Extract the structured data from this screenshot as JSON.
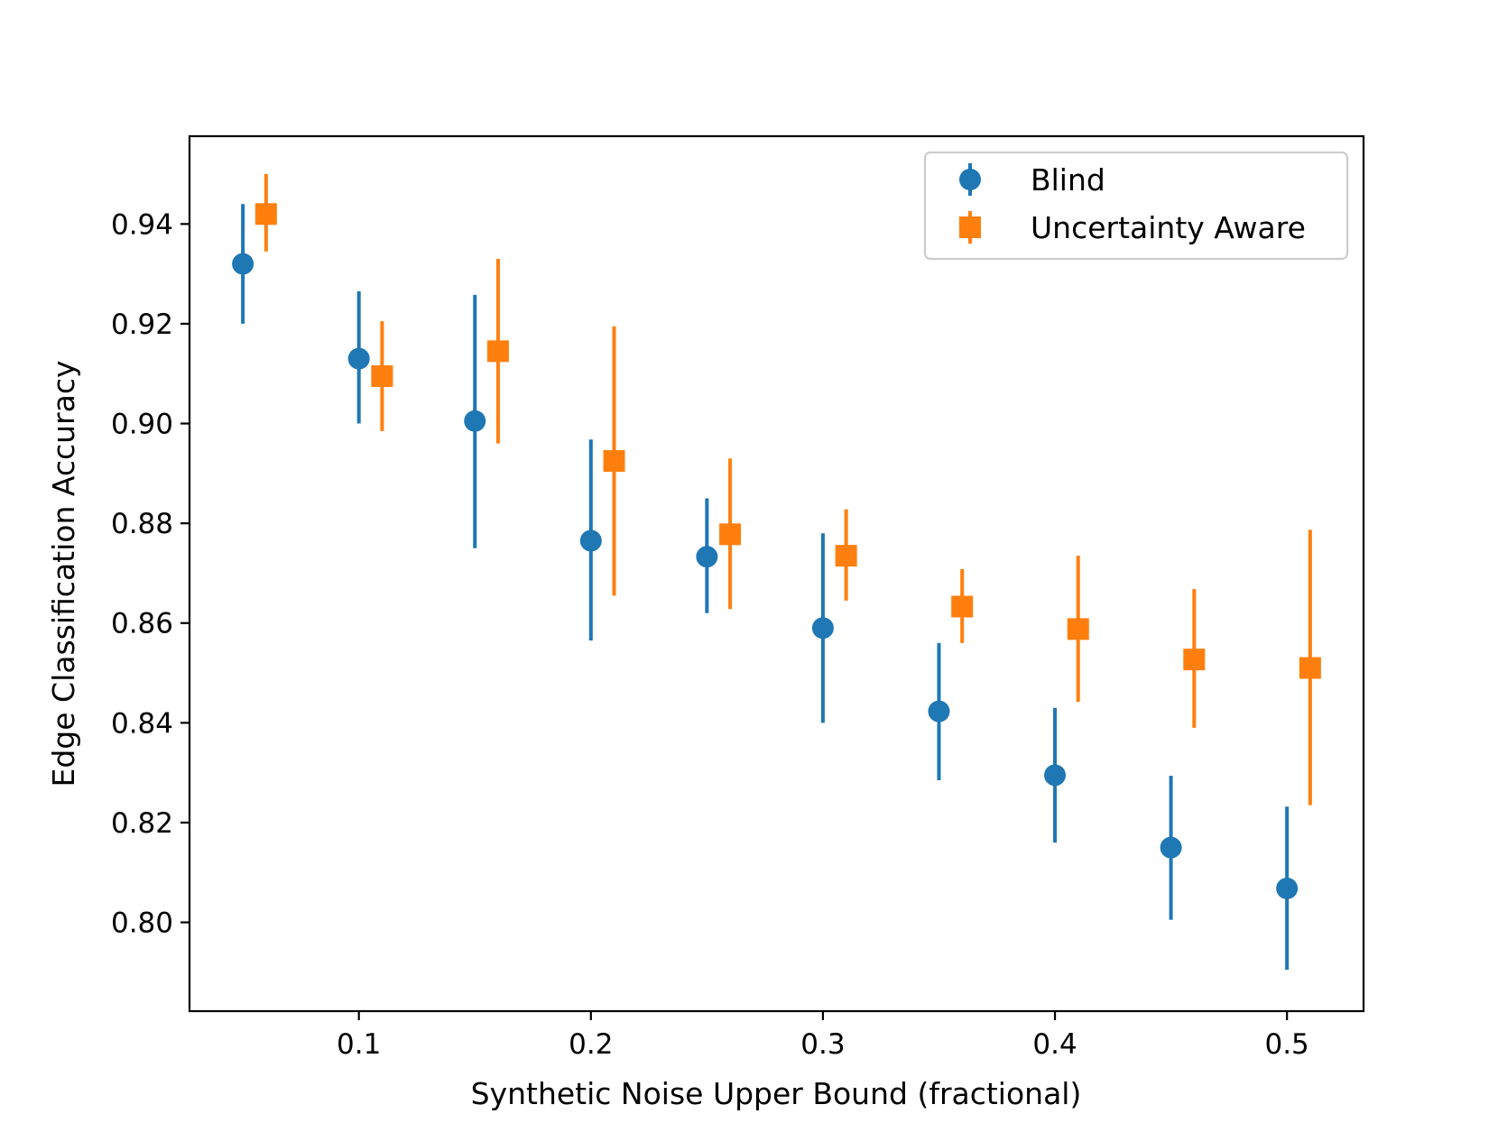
{
  "chart_data": {
    "type": "scatter",
    "title": "",
    "xlabel": "Synthetic Noise Upper Bound (fractional)",
    "ylabel": "Edge Classification Accuracy",
    "xlim": [
      0.027,
      0.533
    ],
    "ylim": [
      0.7822,
      0.9576
    ],
    "xticks": [
      0.1,
      0.2,
      0.3,
      0.4,
      0.5
    ],
    "xtick_labels": [
      "0.1",
      "0.2",
      "0.3",
      "0.4",
      "0.5"
    ],
    "yticks": [
      0.8,
      0.82,
      0.84,
      0.86,
      0.88,
      0.9,
      0.92,
      0.94
    ],
    "ytick_labels": [
      "0.80",
      "0.82",
      "0.84",
      "0.86",
      "0.88",
      "0.90",
      "0.92",
      "0.94"
    ],
    "legend_position": "top-right",
    "series": [
      {
        "name": "Blind",
        "marker": "circle",
        "color": "#1f77b4",
        "x": [
          0.05,
          0.1,
          0.15,
          0.2,
          0.25,
          0.3,
          0.35,
          0.4,
          0.45,
          0.5
        ],
        "y": [
          0.932,
          0.913,
          0.9005,
          0.8765,
          0.8733,
          0.859,
          0.8423,
          0.8295,
          0.815,
          0.8068
        ],
        "err_low": [
          0.92,
          0.9,
          0.875,
          0.8565,
          0.862,
          0.84,
          0.8285,
          0.816,
          0.8005,
          0.7905
        ],
        "err_high": [
          0.944,
          0.9265,
          0.9258,
          0.8968,
          0.885,
          0.878,
          0.856,
          0.843,
          0.8294,
          0.8232
        ]
      },
      {
        "name": "Uncertainty Aware",
        "marker": "square",
        "color": "#ff7f0e",
        "x": [
          0.06,
          0.11,
          0.16,
          0.21,
          0.26,
          0.31,
          0.36,
          0.41,
          0.46,
          0.51
        ],
        "y": [
          0.942,
          0.9095,
          0.9145,
          0.8925,
          0.8778,
          0.8735,
          0.8633,
          0.8588,
          0.8527,
          0.851
        ],
        "err_low": [
          0.9345,
          0.8985,
          0.896,
          0.8655,
          0.8628,
          0.8645,
          0.856,
          0.8442,
          0.839,
          0.8235
        ],
        "err_high": [
          0.95,
          0.9205,
          0.933,
          0.9195,
          0.893,
          0.8828,
          0.8708,
          0.8735,
          0.8668,
          0.8787
        ]
      }
    ]
  }
}
